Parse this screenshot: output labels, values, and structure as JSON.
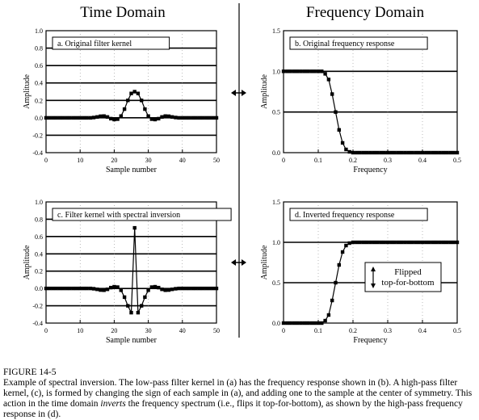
{
  "headings": {
    "left": "Time Domain",
    "right": "Frequency Domain"
  },
  "caption": {
    "figure": "FIGURE 14-5",
    "pre": "Example of spectral inversion.  The low-pass filter kernel in (a) has the frequency response shown in (b).  A high-pass filter kernel, (c), is formed by changing the sign of each sample in (a), and adding one to the sample at the center of symmetry.  This action in the time domain ",
    "em": "inverts",
    "post": " the frequency spectrum (i.e., flips it top-for-bottom), as shown by the high-pass frequency response in (d)."
  },
  "annotation": {
    "line1": "Flipped",
    "line2": "top-for-bottom"
  },
  "chart_data": [
    {
      "id": "a",
      "type": "line",
      "title": "a.  Original filter kernel",
      "xlabel": "Sample number",
      "ylabel": "Amplitude",
      "xlim": [
        0,
        50
      ],
      "ylim": [
        -0.4,
        1.0
      ],
      "xticks": [
        0,
        10,
        20,
        30,
        40,
        50
      ],
      "yticks": [
        -0.4,
        -0.2,
        0.0,
        0.2,
        0.4,
        0.6,
        0.8,
        1.0
      ],
      "ytick_labels": [
        "-0.4",
        "-0.2",
        "0.0",
        "0.2",
        "0.4",
        "0.6",
        "0.8",
        "1.0"
      ],
      "grid": true,
      "markers": true,
      "x": [
        0,
        1,
        2,
        3,
        4,
        5,
        6,
        7,
        8,
        9,
        10,
        11,
        12,
        13,
        14,
        15,
        16,
        17,
        18,
        19,
        20,
        21,
        22,
        23,
        24,
        25,
        26,
        27,
        28,
        29,
        30,
        31,
        32,
        33,
        34,
        35,
        36,
        37,
        38,
        39,
        40,
        41,
        42,
        43,
        44,
        45,
        46,
        47,
        48,
        49,
        50
      ],
      "y": [
        0,
        0,
        0,
        0,
        0,
        0,
        0,
        0,
        0,
        0,
        0,
        0,
        0,
        0,
        0.003,
        0.01,
        0.018,
        0.02,
        0.01,
        -0.01,
        -0.02,
        -0.015,
        0.02,
        0.1,
        0.2,
        0.28,
        0.3,
        0.28,
        0.2,
        0.1,
        0.02,
        -0.015,
        -0.02,
        -0.01,
        0.01,
        0.02,
        0.018,
        0.01,
        0.003,
        0,
        0,
        0,
        0,
        0,
        0,
        0,
        0,
        0,
        0,
        0,
        0
      ]
    },
    {
      "id": "b",
      "type": "line",
      "title": "b.  Original frequency response",
      "xlabel": "Frequency",
      "ylabel": "Amplitude",
      "xlim": [
        0,
        0.5
      ],
      "ylim": [
        0,
        1.5
      ],
      "xticks": [
        0,
        0.1,
        0.2,
        0.3,
        0.4,
        0.5
      ],
      "xtick_labels": [
        "0",
        "0.1",
        "0.2",
        "0.3",
        "0.4",
        "0.5"
      ],
      "yticks": [
        0,
        0.5,
        1.0,
        1.5
      ],
      "ytick_labels": [
        "0.0",
        "0.5",
        "1.0",
        "1.5"
      ],
      "grid": true,
      "markers": true,
      "x": [
        0,
        0.01,
        0.02,
        0.03,
        0.04,
        0.05,
        0.06,
        0.07,
        0.08,
        0.09,
        0.1,
        0.11,
        0.12,
        0.13,
        0.14,
        0.15,
        0.16,
        0.17,
        0.18,
        0.19,
        0.2,
        0.21,
        0.22,
        0.23,
        0.24,
        0.25,
        0.26,
        0.27,
        0.28,
        0.29,
        0.3,
        0.31,
        0.32,
        0.33,
        0.34,
        0.35,
        0.36,
        0.37,
        0.38,
        0.39,
        0.4,
        0.41,
        0.42,
        0.43,
        0.44,
        0.45,
        0.46,
        0.47,
        0.48,
        0.49,
        0.5
      ],
      "y": [
        1,
        1,
        1,
        1,
        1,
        1,
        1,
        1,
        1,
        1,
        1,
        1,
        0.97,
        0.9,
        0.72,
        0.5,
        0.28,
        0.12,
        0.04,
        0.01,
        0,
        0,
        0,
        0,
        0,
        0,
        0,
        0,
        0,
        0,
        0,
        0,
        0,
        0,
        0,
        0,
        0,
        0,
        0,
        0,
        0,
        0,
        0,
        0,
        0,
        0,
        0,
        0,
        0,
        0,
        0
      ]
    },
    {
      "id": "c",
      "type": "line",
      "title": "c.  Filter kernel with spectral inversion",
      "xlabel": "Sample number",
      "ylabel": "Amplitude",
      "xlim": [
        0,
        50
      ],
      "ylim": [
        -0.4,
        1.0
      ],
      "xticks": [
        0,
        10,
        20,
        30,
        40,
        50
      ],
      "yticks": [
        -0.4,
        -0.2,
        0.0,
        0.2,
        0.4,
        0.6,
        0.8,
        1.0
      ],
      "ytick_labels": [
        "-0.4",
        "-0.2",
        "0.0",
        "0.2",
        "0.4",
        "0.6",
        "0.8",
        "1.0"
      ],
      "grid": true,
      "markers": true,
      "x": [
        0,
        1,
        2,
        3,
        4,
        5,
        6,
        7,
        8,
        9,
        10,
        11,
        12,
        13,
        14,
        15,
        16,
        17,
        18,
        19,
        20,
        21,
        22,
        23,
        24,
        25,
        26,
        27,
        28,
        29,
        30,
        31,
        32,
        33,
        34,
        35,
        36,
        37,
        38,
        39,
        40,
        41,
        42,
        43,
        44,
        45,
        46,
        47,
        48,
        49,
        50
      ],
      "y": [
        0,
        0,
        0,
        0,
        0,
        0,
        0,
        0,
        0,
        0,
        0,
        0,
        0,
        0,
        -0.003,
        -0.01,
        -0.018,
        -0.02,
        -0.01,
        0.01,
        0.02,
        0.015,
        -0.02,
        -0.1,
        -0.2,
        -0.28,
        0.7,
        -0.28,
        -0.2,
        -0.1,
        -0.02,
        0.015,
        0.02,
        0.01,
        -0.01,
        -0.02,
        -0.018,
        -0.01,
        -0.003,
        0,
        0,
        0,
        0,
        0,
        0,
        0,
        0,
        0,
        0,
        0,
        0
      ]
    },
    {
      "id": "d",
      "type": "line",
      "title": "d.  Inverted frequency response",
      "xlabel": "Frequency",
      "ylabel": "Amplitude",
      "xlim": [
        0,
        0.5
      ],
      "ylim": [
        0,
        1.5
      ],
      "xticks": [
        0,
        0.1,
        0.2,
        0.3,
        0.4,
        0.5
      ],
      "xtick_labels": [
        "0",
        "0.1",
        "0.2",
        "0.3",
        "0.4",
        "0.5"
      ],
      "yticks": [
        0,
        0.5,
        1.0,
        1.5
      ],
      "ytick_labels": [
        "0.0",
        "0.5",
        "1.0",
        "1.5"
      ],
      "grid": true,
      "markers": true,
      "x": [
        0,
        0.01,
        0.02,
        0.03,
        0.04,
        0.05,
        0.06,
        0.07,
        0.08,
        0.09,
        0.1,
        0.11,
        0.12,
        0.13,
        0.14,
        0.15,
        0.16,
        0.17,
        0.18,
        0.19,
        0.2,
        0.21,
        0.22,
        0.23,
        0.24,
        0.25,
        0.26,
        0.27,
        0.28,
        0.29,
        0.3,
        0.31,
        0.32,
        0.33,
        0.34,
        0.35,
        0.36,
        0.37,
        0.38,
        0.39,
        0.4,
        0.41,
        0.42,
        0.43,
        0.44,
        0.45,
        0.46,
        0.47,
        0.48,
        0.49,
        0.5
      ],
      "y": [
        0,
        0,
        0,
        0,
        0,
        0,
        0,
        0,
        0,
        0,
        0,
        0,
        0.03,
        0.1,
        0.28,
        0.5,
        0.72,
        0.88,
        0.96,
        0.99,
        1,
        1,
        1,
        1,
        1,
        1,
        1,
        1,
        1,
        1,
        1,
        1,
        1,
        1,
        1,
        1,
        1,
        1,
        1,
        1,
        1,
        1,
        1,
        1,
        1,
        1,
        1,
        1,
        1,
        1,
        1
      ]
    }
  ]
}
